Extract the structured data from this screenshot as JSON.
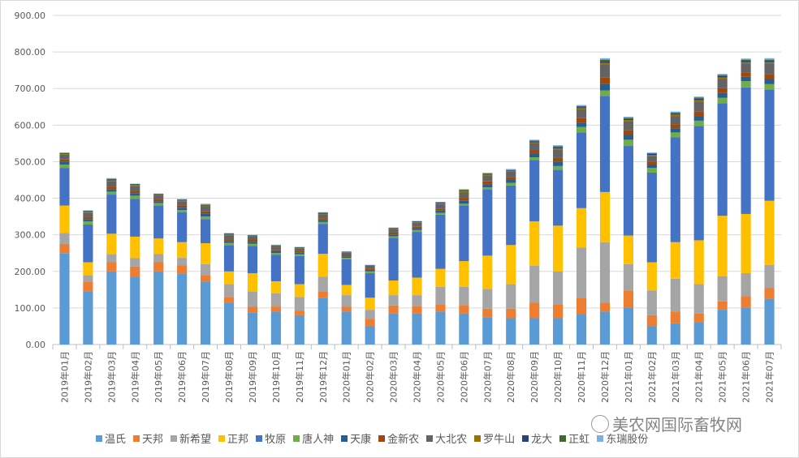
{
  "chart_data": {
    "type": "bar",
    "stacked": true,
    "title": "",
    "xlabel": "",
    "ylabel": "",
    "ylim": [
      0,
      900
    ],
    "yticks": [
      "0.00",
      "100.00",
      "200.00",
      "300.00",
      "400.00",
      "500.00",
      "600.00",
      "700.00",
      "800.00",
      "900.00"
    ],
    "grid": true,
    "legend_position": "bottom",
    "categories": [
      "2019年01月",
      "2019年02月",
      "2019年03月",
      "2019年04月",
      "2019年05月",
      "2019年06月",
      "2019年07月",
      "2019年08月",
      "2019年09月",
      "2019年10月",
      "2019年11月",
      "2019年12月",
      "2020年01月",
      "2020年02月",
      "2020年03月",
      "2020年04月",
      "2020年05月",
      "2020年06月",
      "2020年07月",
      "2020年08月",
      "2020年09月",
      "2020年10月",
      "2020年11月",
      "2020年12月",
      "2021年01月",
      "2021年02月",
      "2021年03月",
      "2021年04月",
      "2021年05月",
      "2021年06月",
      "2021年07月"
    ],
    "series": [
      {
        "name": "温氏",
        "color": "#5B9BD5",
        "values": [
          250,
          145,
          200,
          185,
          200,
          193,
          172,
          115,
          88,
          90,
          80,
          128,
          90,
          50,
          85,
          85,
          90,
          85,
          75,
          72,
          72,
          72,
          82,
          90,
          100,
          50,
          58,
          60,
          95,
          100,
          125
        ]
      },
      {
        "name": "天邦",
        "color": "#ED7D31",
        "values": [
          25,
          27,
          25,
          28,
          25,
          24,
          18,
          15,
          15,
          14,
          12,
          17,
          13,
          20,
          22,
          20,
          20,
          23,
          23,
          26,
          43,
          38,
          46,
          25,
          48,
          30,
          32,
          25,
          23,
          32,
          30
        ]
      },
      {
        "name": "新希望",
        "color": "#A5A5A5",
        "values": [
          30,
          18,
          22,
          23,
          23,
          20,
          30,
          35,
          42,
          36,
          38,
          40,
          32,
          25,
          28,
          30,
          48,
          50,
          54,
          67,
          100,
          90,
          137,
          165,
          72,
          68,
          90,
          80,
          69,
          63,
          63
        ]
      },
      {
        "name": "正邦",
        "color": "#FFC000",
        "values": [
          75,
          35,
          56,
          59,
          42,
          43,
          57,
          35,
          50,
          33,
          35,
          63,
          28,
          33,
          40,
          48,
          49,
          70,
          91,
          107,
          122,
          125,
          108,
          137,
          78,
          77,
          100,
          120,
          165,
          162,
          175
        ]
      },
      {
        "name": "牧原",
        "color": "#4472C4",
        "values": [
          103,
          103,
          107,
          103,
          90,
          82,
          66,
          72,
          75,
          72,
          77,
          82,
          70,
          67,
          117,
          125,
          148,
          152,
          182,
          163,
          168,
          153,
          207,
          263,
          245,
          245,
          287,
          313,
          308,
          346,
          304
        ]
      },
      {
        "name": "唐人神",
        "color": "#70AD47",
        "values": [
          9,
          9,
          8,
          9,
          7,
          6,
          7,
          6,
          6,
          5,
          5,
          5,
          4,
          5,
          4,
          5,
          5,
          5,
          5,
          7,
          7,
          10,
          15,
          15,
          17,
          13,
          13,
          14,
          15,
          17,
          15
        ]
      },
      {
        "name": "天康",
        "color": "#255E91",
        "values": [
          7,
          6,
          7,
          7,
          5,
          6,
          7,
          5,
          5,
          5,
          4,
          5,
          4,
          4,
          5,
          5,
          6,
          8,
          8,
          8,
          10,
          11,
          12,
          18,
          13,
          8,
          11,
          13,
          13,
          12,
          14
        ]
      },
      {
        "name": "金新农",
        "color": "#9E480E",
        "values": [
          7,
          6,
          7,
          7,
          5,
          6,
          7,
          5,
          5,
          4,
          4,
          5,
          4,
          4,
          5,
          5,
          6,
          8,
          8,
          8,
          10,
          11,
          12,
          18,
          13,
          8,
          11,
          13,
          13,
          12,
          14
        ]
      },
      {
        "name": "大北农",
        "color": "#636363",
        "values": [
          13,
          12,
          15,
          13,
          10,
          12,
          14,
          11,
          10,
          9,
          8,
          11,
          7,
          7,
          10,
          10,
          12,
          16,
          16,
          15,
          19,
          23,
          24,
          35,
          25,
          17,
          23,
          26,
          26,
          25,
          29
        ]
      },
      {
        "name": "罗牛山",
        "color": "#997300",
        "values": [
          2,
          2,
          2,
          2,
          2,
          2,
          2,
          2,
          1,
          1,
          1,
          2,
          1,
          1,
          1,
          1,
          2,
          2,
          2,
          2,
          2,
          3,
          3,
          4,
          3,
          2,
          3,
          4,
          3,
          3,
          3
        ]
      },
      {
        "name": "龙大",
        "color": "#264478",
        "values": [
          2,
          2,
          2,
          2,
          2,
          2,
          2,
          2,
          1,
          2,
          1,
          2,
          1,
          1,
          1,
          2,
          2,
          2,
          2,
          2,
          3,
          3,
          3,
          5,
          3,
          3,
          3,
          4,
          4,
          4,
          4
        ]
      },
      {
        "name": "正虹",
        "color": "#43682B",
        "values": [
          1,
          1,
          2,
          1,
          1,
          1,
          1,
          1,
          1,
          1,
          1,
          1,
          0,
          0,
          1,
          1,
          1,
          2,
          2,
          1,
          2,
          3,
          3,
          4,
          3,
          2,
          3,
          3,
          3,
          3,
          3
        ]
      },
      {
        "name": "东瑞股份",
        "color": "#7CAFDD",
        "values": [
          1,
          1,
          2,
          1,
          1,
          1,
          2,
          1,
          1,
          1,
          1,
          1,
          1,
          1,
          1,
          1,
          1,
          2,
          2,
          2,
          2,
          3,
          3,
          4,
          3,
          2,
          3,
          3,
          3,
          3,
          4
        ]
      }
    ]
  },
  "watermark": {
    "text": "美农网国际畜牧网"
  }
}
